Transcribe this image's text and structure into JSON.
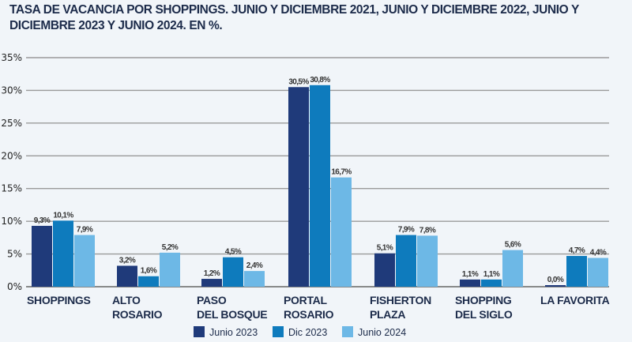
{
  "title": "TASA DE VACANCIA POR SHOPPINGS. JUNIO Y DICIEMBRE 2021, JUNIO Y DICIEMBRE 2022, JUNIO Y DICIEMBRE 2023 Y JUNIO 2024. EN %.",
  "chart_data": {
    "type": "bar",
    "title": "TASA DE VACANCIA POR SHOPPINGS. JUNIO Y DICIEMBRE 2021, JUNIO Y DICIEMBRE 2022, JUNIO Y DICIEMBRE 2023 Y JUNIO 2024. EN %.",
    "xlabel": "",
    "ylabel": "",
    "ylim": [
      0,
      35
    ],
    "yticks": [
      0,
      5,
      10,
      15,
      20,
      25,
      30,
      35
    ],
    "ytick_labels": [
      "0%",
      "5%",
      "10%",
      "15%",
      "20%",
      "25%",
      "30%",
      "35%"
    ],
    "grid": true,
    "legend_position": "bottom-center",
    "categories": [
      [
        "SHOPPINGS"
      ],
      [
        "ALTO",
        "ROSARIO"
      ],
      [
        "PASO",
        "DEL BOSQUE"
      ],
      [
        "PORTAL",
        "ROSARIO"
      ],
      [
        "FISHERTON",
        "PLAZA"
      ],
      [
        "SHOPPING",
        "DEL SIGLO"
      ],
      [
        "LA FAVORITA"
      ]
    ],
    "series": [
      {
        "name": "Junio 2023",
        "color": "#1f3a7a",
        "values": [
          9.3,
          3.2,
          1.2,
          30.5,
          5.1,
          1.1,
          0.0
        ],
        "labels": [
          "9,3%",
          "3,2%",
          "1,2%",
          "30,5%",
          "5,1%",
          "1,1%",
          "0,0%"
        ]
      },
      {
        "name": "Dic 2023",
        "color": "#0e7bbd",
        "values": [
          10.1,
          1.6,
          4.5,
          30.8,
          7.9,
          1.1,
          4.7
        ],
        "labels": [
          "10,1%",
          "1,6%",
          "4,5%",
          "30,8%",
          "7,9%",
          "1,1%",
          "4,7%"
        ]
      },
      {
        "name": "Junio 2024",
        "color": "#6db8e6",
        "values": [
          7.9,
          5.2,
          2.4,
          16.7,
          7.8,
          5.6,
          4.4
        ],
        "labels": [
          "7,9%",
          "5,2%",
          "2,4%",
          "16,7%",
          "7,8%",
          "5,6%",
          "4,4%"
        ]
      }
    ]
  }
}
